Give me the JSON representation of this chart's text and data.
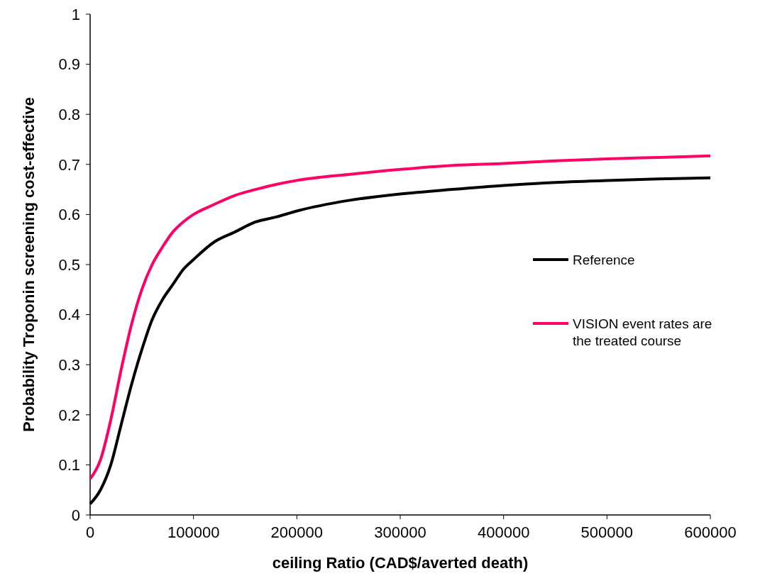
{
  "chart_data": {
    "type": "line",
    "xlabel": "ceiling  Ratio (CAD$/averted death)",
    "ylabel": "Probability Troponin screening cost-effective",
    "x": [
      0,
      10000,
      20000,
      30000,
      40000,
      50000,
      60000,
      70000,
      80000,
      90000,
      100000,
      120000,
      140000,
      160000,
      180000,
      200000,
      250000,
      300000,
      350000,
      400000,
      450000,
      500000,
      550000,
      600000
    ],
    "series": [
      {
        "name": "Reference",
        "color": "#000000",
        "values": [
          0.022,
          0.05,
          0.1,
          0.18,
          0.26,
          0.33,
          0.39,
          0.43,
          0.46,
          0.49,
          0.51,
          0.545,
          0.565,
          0.585,
          0.595,
          0.607,
          0.628,
          0.641,
          0.65,
          0.658,
          0.664,
          0.668,
          0.671,
          0.673
        ]
      },
      {
        "name": "VISION event rates are the treated course",
        "color": "#ff0066",
        "values": [
          0.072,
          0.11,
          0.19,
          0.29,
          0.38,
          0.45,
          0.5,
          0.535,
          0.565,
          0.585,
          0.6,
          0.62,
          0.638,
          0.65,
          0.66,
          0.668,
          0.68,
          0.69,
          0.698,
          0.702,
          0.707,
          0.711,
          0.714,
          0.717
        ]
      }
    ],
    "xlim": [
      0,
      600000
    ],
    "xticks": [
      0,
      100000,
      200000,
      300000,
      400000,
      500000,
      600000
    ],
    "ylim": [
      0,
      1
    ],
    "yticks": [
      0,
      0.1,
      0.2,
      0.3,
      0.4,
      0.5,
      0.6,
      0.7,
      0.8,
      0.9,
      1
    ],
    "grid": false,
    "legend": "right",
    "marker": "none",
    "line_style": "solid"
  }
}
